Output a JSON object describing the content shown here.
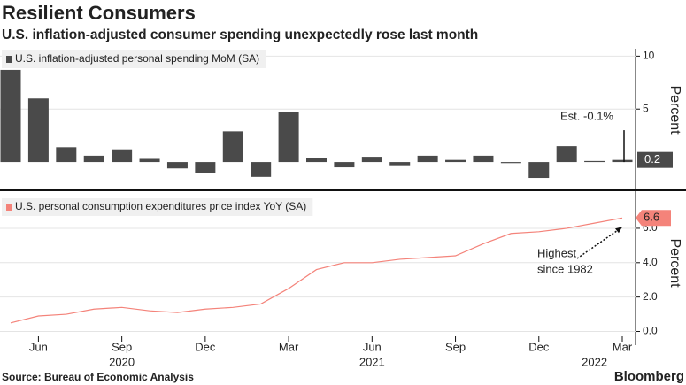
{
  "title": "Resilient Consumers",
  "subtitle": "U.S. inflation-adjusted consumer spending unexpectedly rose last month",
  "source": "Source: Bureau of Economic Analysis",
  "brand": "Bloomberg",
  "x_axis": {
    "categories": [
      null,
      "Jun",
      null,
      null,
      "Sep",
      null,
      null,
      "Dec",
      null,
      null,
      "Mar",
      null,
      null,
      "Jun",
      null,
      null,
      "Sep",
      null,
      null,
      "Dec",
      null,
      null,
      "Mar"
    ],
    "year_labels": [
      null,
      null,
      null,
      null,
      "2020",
      null,
      null,
      null,
      null,
      null,
      null,
      null,
      null,
      "2021",
      null,
      null,
      null,
      null,
      null,
      null,
      null,
      "2022",
      null
    ]
  },
  "chart_data": [
    {
      "type": "bar",
      "ylabel": "Percent",
      "annotation": "Est. -0.1%",
      "series": [
        {
          "name": "U.S. inflation-adjusted personal spending MoM (SA)",
          "color": "#4a4a4a",
          "values": [
            8.7,
            6.0,
            1.4,
            0.6,
            1.2,
            0.3,
            -0.6,
            -1.0,
            2.9,
            -1.4,
            4.7,
            0.4,
            -0.5,
            0.5,
            -0.3,
            0.6,
            0.2,
            0.6,
            -0.1,
            -1.5,
            1.5,
            0.1,
            0.2
          ],
          "value_labels": [
            null,
            null,
            null,
            null,
            null,
            null,
            null,
            null,
            null,
            null,
            null,
            null,
            null,
            null,
            null,
            null,
            null,
            null,
            null,
            null,
            null,
            null,
            "0.2"
          ]
        }
      ],
      "ylim": [
        -2.5,
        10.7
      ],
      "yticks": [
        10,
        5
      ],
      "grid": true
    },
    {
      "type": "line",
      "ylabel": "Percent",
      "annotation": [
        "Highest",
        "since 1982"
      ],
      "series": [
        {
          "name": "U.S. personal consumption expenditures price index YoY (SA)",
          "color": "#f4837a",
          "values": [
            0.5,
            0.9,
            1.0,
            1.3,
            1.4,
            1.2,
            1.1,
            1.3,
            1.4,
            1.6,
            2.5,
            3.6,
            4.0,
            4.0,
            4.2,
            4.3,
            4.4,
            5.1,
            5.7,
            5.8,
            6.0,
            6.3,
            6.6
          ],
          "value_labels": [
            null,
            null,
            null,
            null,
            null,
            null,
            null,
            null,
            null,
            null,
            null,
            null,
            null,
            null,
            null,
            null,
            null,
            null,
            null,
            null,
            null,
            null,
            "6.6"
          ]
        }
      ],
      "ylim": [
        -0.9,
        7.85
      ],
      "yticks": [
        {
          "value": 0,
          "label": "0.0"
        },
        {
          "value": 2,
          "label": "2.0"
        },
        {
          "value": 4,
          "label": "4.0"
        },
        {
          "value": 6,
          "label": "6.0"
        }
      ],
      "grid": true
    }
  ]
}
